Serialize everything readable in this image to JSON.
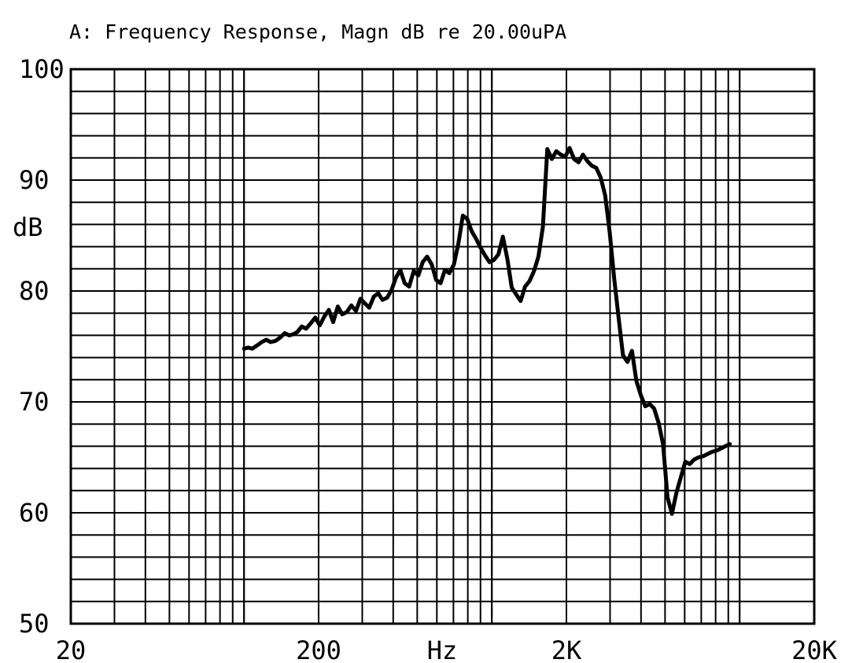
{
  "chart_data": {
    "type": "line",
    "title": "A: Frequency Response, Magn dB re 20.00uPA",
    "xlabel": "Hz",
    "ylabel": "dB",
    "x_scale": "log",
    "xlim": [
      20,
      20000
    ],
    "ylim": [
      50,
      100
    ],
    "grid": true,
    "x_ticks": [
      {
        "value": 20,
        "label": "20"
      },
      {
        "value": 200,
        "label": "200"
      },
      {
        "value": 2000,
        "label": "2K"
      },
      {
        "value": 20000,
        "label": "20K"
      }
    ],
    "y_ticks": [
      {
        "value": 100,
        "label": "100"
      },
      {
        "value": 90,
        "label": "90"
      },
      {
        "value": 80,
        "label": "80"
      },
      {
        "value": 70,
        "label": "70"
      },
      {
        "value": 60,
        "label": "60"
      },
      {
        "value": 50,
        "label": "50"
      }
    ],
    "series": [
      {
        "x": [
          100,
          104,
          108,
          113,
          118,
          123,
          128,
          134,
          140,
          146,
          152,
          158,
          164,
          171,
          178,
          186,
          194,
          202,
          211,
          220,
          229,
          239,
          249,
          260,
          271,
          283,
          295,
          307,
          320,
          334,
          348,
          362,
          378,
          394,
          410,
          427,
          445,
          464,
          484,
          505,
          526,
          548,
          572,
          596,
          621,
          647,
          674,
          703,
          733,
          764,
          796,
          829,
          864,
          901,
          939,
          979,
          1020,
          1063,
          1108,
          1155,
          1203,
          1254,
          1307,
          1362,
          1420,
          1480,
          1542,
          1607,
          1675,
          1746,
          1820,
          1897,
          1977,
          2060,
          2147,
          2238,
          2332,
          2431,
          2533,
          2640,
          2752,
          2868,
          2989,
          3115,
          3247,
          3384,
          3527,
          3676,
          3830,
          3992,
          4161,
          4336,
          4519,
          4710,
          4909,
          5116,
          5332,
          5557,
          5791,
          6036,
          6290,
          6556,
          6833,
          7121,
          7422,
          7735,
          8061,
          8402,
          8756,
          9126
        ],
        "y": [
          74.8,
          74.9,
          74.8,
          75.1,
          75.4,
          75.6,
          75.4,
          75.5,
          75.8,
          76.2,
          76.0,
          76.1,
          76.3,
          76.8,
          76.6,
          77.1,
          77.6,
          76.9,
          77.7,
          78.3,
          77.2,
          78.6,
          77.9,
          78.1,
          78.7,
          78.2,
          79.3,
          78.9,
          78.5,
          79.5,
          79.8,
          79.2,
          79.4,
          80.1,
          81.2,
          81.9,
          80.7,
          80.4,
          81.8,
          81.4,
          82.6,
          83.1,
          82.4,
          81.0,
          80.7,
          81.9,
          81.6,
          82.4,
          84.3,
          86.8,
          86.5,
          85.4,
          84.7,
          83.9,
          83.2,
          82.6,
          82.8,
          83.3,
          84.9,
          82.9,
          80.3,
          79.7,
          79.1,
          80.4,
          80.9,
          81.8,
          83.1,
          85.8,
          92.8,
          91.9,
          92.6,
          92.3,
          92.1,
          92.9,
          91.9,
          91.6,
          92.3,
          91.7,
          91.3,
          91.1,
          90.2,
          88.6,
          85.3,
          81.2,
          77.6,
          74.2,
          73.6,
          74.6,
          71.9,
          70.6,
          69.6,
          69.8,
          69.4,
          68.1,
          66.2,
          61.4,
          59.9,
          61.8,
          63.2,
          64.6,
          64.4,
          64.8,
          65.0,
          65.1,
          65.3,
          65.5,
          65.6,
          65.8,
          66.0,
          66.2
        ]
      }
    ]
  }
}
